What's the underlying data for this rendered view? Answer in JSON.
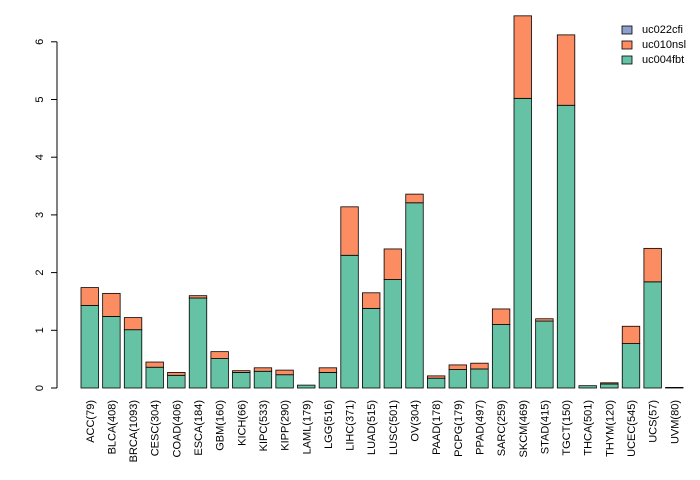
{
  "chart_data": {
    "type": "bar",
    "stacked": true,
    "title": "",
    "xlabel": "",
    "ylabel": "",
    "ylim": [
      0,
      6.5
    ],
    "yticks": [
      0,
      1,
      2,
      3,
      4,
      5,
      6
    ],
    "ytick_labels": [
      "0",
      "1",
      "2",
      "3",
      "4",
      "5",
      "6"
    ],
    "categories": [
      "ACC(79)",
      "BLCA(408)",
      "BRCA(1093)",
      "CESC(304)",
      "COAD(406)",
      "ESCA(184)",
      "GBM(160)",
      "KICH(66)",
      "KIPC(533)",
      "KIPP(290)",
      "LAML(179)",
      "LGG(516)",
      "LIHC(371)",
      "LUAD(515)",
      "LUSC(501)",
      "OV(304)",
      "PAAD(178)",
      "PCPG(179)",
      "PPAD(497)",
      "SARC(259)",
      "SKCM(469)",
      "STAD(415)",
      "TGCT(150)",
      "THCA(501)",
      "THYM(120)",
      "UCEC(545)",
      "UCS(57)",
      "UVM(80)"
    ],
    "series": [
      {
        "name": "uc004fbt",
        "color": "#66c2a5",
        "values": [
          1.43,
          1.24,
          1.01,
          0.36,
          0.22,
          1.56,
          0.51,
          0.27,
          0.29,
          0.23,
          0.05,
          0.27,
          2.3,
          1.38,
          1.88,
          3.21,
          0.17,
          0.32,
          0.33,
          1.1,
          5.02,
          1.16,
          4.9,
          0.04,
          0.07,
          0.77,
          1.84,
          0.01
        ]
      },
      {
        "name": "uc010nsl",
        "color": "#fc8d62",
        "values": [
          0.31,
          0.4,
          0.21,
          0.09,
          0.05,
          0.04,
          0.12,
          0.03,
          0.06,
          0.08,
          0.0,
          0.08,
          0.84,
          0.27,
          0.53,
          0.15,
          0.04,
          0.08,
          0.1,
          0.27,
          1.43,
          0.04,
          1.22,
          0.0,
          0.02,
          0.3,
          0.58,
          0.0
        ]
      },
      {
        "name": "uc022cfi",
        "color": "#8da0cb",
        "values": [
          0,
          0,
          0,
          0,
          0,
          0,
          0,
          0,
          0,
          0,
          0,
          0,
          0,
          0,
          0,
          0,
          0,
          0,
          0,
          0,
          0,
          0,
          0,
          0,
          0,
          0,
          0,
          0
        ]
      }
    ],
    "legend": {
      "position": "top-right",
      "entries": [
        {
          "label": "uc022cfi",
          "color": "#8da0cb"
        },
        {
          "label": "uc010nsl",
          "color": "#fc8d62"
        },
        {
          "label": "uc004fbt",
          "color": "#66c2a5"
        }
      ]
    }
  }
}
